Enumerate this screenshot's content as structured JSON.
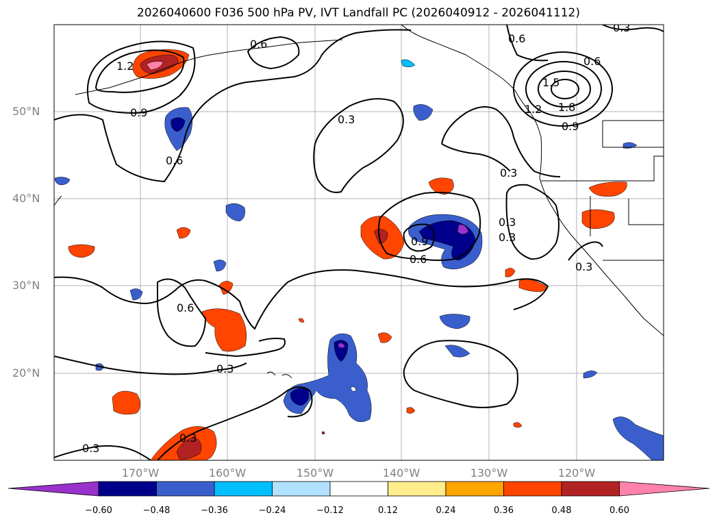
{
  "title": "2026040600 F036 500 hPa PV, IVT Landfall PC (2026040912 - 2026041112)",
  "lat_labels": [
    "50°N",
    "40°N",
    "30°N",
    "20°N"
  ],
  "lon_labels": [
    "170°W",
    "160°W",
    "150°W",
    "140°W",
    "130°W",
    "120°W"
  ],
  "contour_labels": [
    "1.2",
    "0.9",
    "0.6",
    "0.3",
    "0.6",
    "0.3",
    "0.9",
    "0.6",
    "0.3",
    "0.3",
    "0.6",
    "0.3",
    "0.3",
    "0.3",
    "0.6",
    "1.5",
    "1.8",
    "0.9",
    "1.2",
    "0.6",
    "0.3",
    "0.3"
  ],
  "colorbar": {
    "ticks": [
      "−0.60",
      "−0.48",
      "−0.36",
      "−0.24",
      "−0.12",
      "0.12",
      "0.24",
      "0.36",
      "0.48",
      "0.60"
    ],
    "colors": [
      "#9932cc",
      "#00008b",
      "#3a5fcd",
      "#00bfff",
      "#b0e2ff",
      "#ffffff",
      "#ffec8b",
      "#ffa500",
      "#ff4500",
      "#b22222",
      "#ff82ab"
    ]
  }
}
